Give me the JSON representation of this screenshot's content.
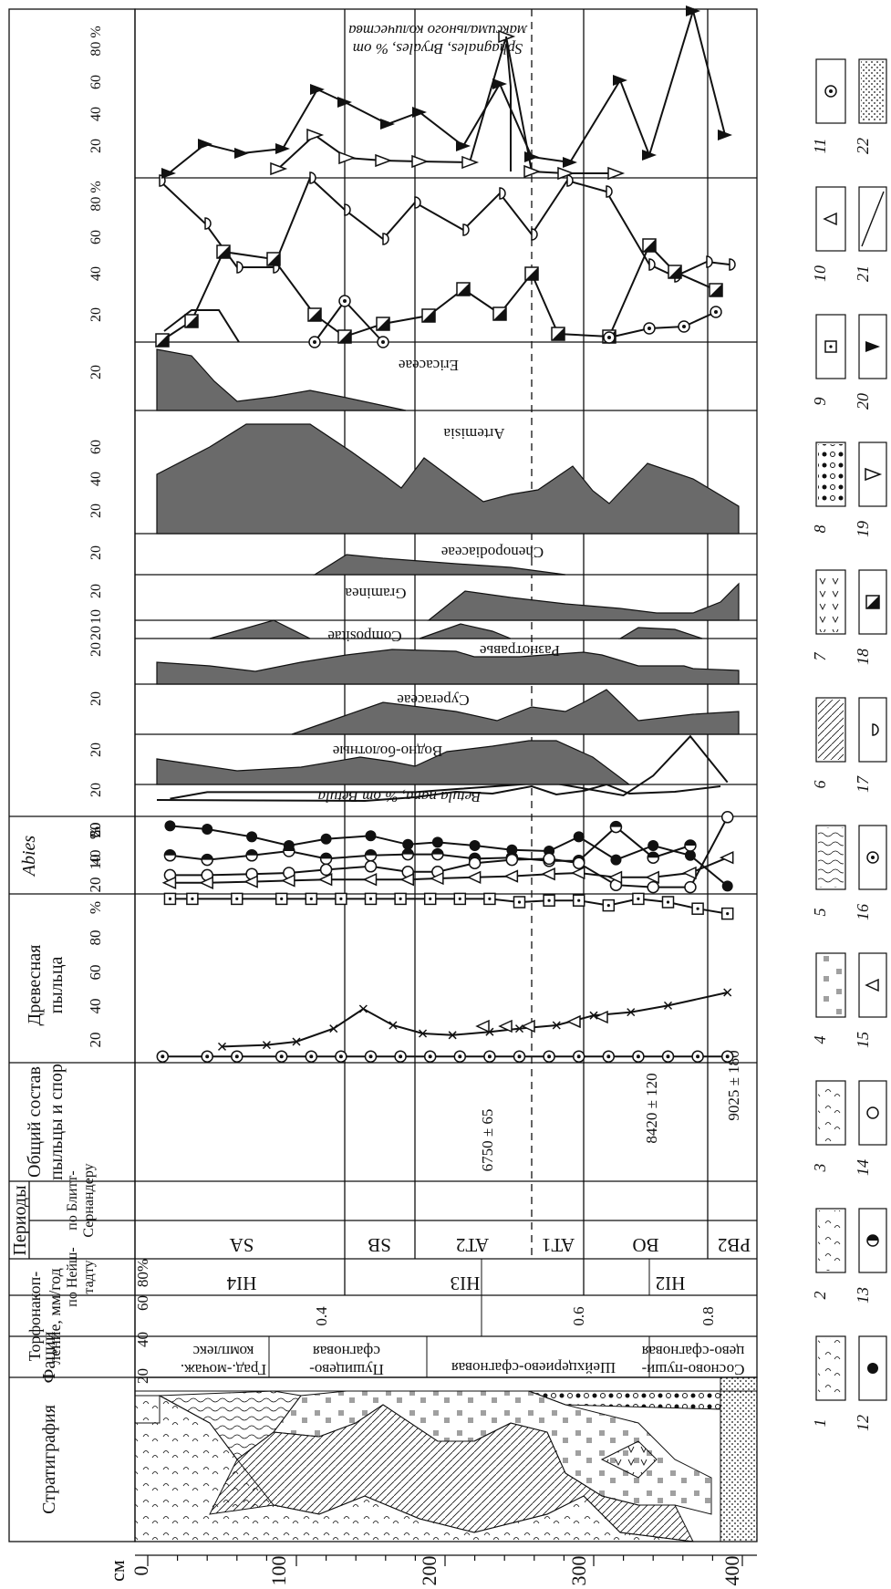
{
  "depth_axis": {
    "unit": "см",
    "ticks": [
      "0",
      "100",
      "200",
      "300",
      "400"
    ]
  },
  "headers": {
    "stratigraphy": "Стратиграфия",
    "facies": "Фации",
    "accumulation": "Торфонакоп-\nление, мм/год",
    "periods": "Периоды",
    "periods_neishtadt": "по Нейш-\nтадту",
    "periods_blytt": "по Блитт-\nСернандеру",
    "general": "Общий состав\nпыльцы и спор",
    "trees": "Древесная\nпыльца",
    "abies": "Abies"
  },
  "facies": [
    "Град.-мочаж.\nкомплекс",
    "Пушицево-\nсфагновая",
    "Шейхцериево-сфагновая",
    "Сосново-пуши-\nцево-сфагновая"
  ],
  "accumulation_values": [
    "0.4",
    "0.6",
    "0.8"
  ],
  "periods_neishtadt": [
    "HI4",
    "HI3",
    "HI2"
  ],
  "periods_blytt": [
    "SA",
    "SB",
    "AT2",
    "AT1",
    "BO",
    "PB2"
  ],
  "dates": [
    "6750 ± 65",
    "8420 ± 120",
    "9025 ± 180"
  ],
  "panel_labels": {
    "betula": "Betula nana, % от Betula",
    "bog": "Водно-болотные",
    "cyperaceae": "Cyperaceae",
    "herbs": "Разнотравье",
    "compositae": "Compositae",
    "gramineae": "Gramineа",
    "chenopodiaceae": "Chenopodiaceae",
    "artemisia": "Artemisia",
    "ericaceae": "Ericaceae",
    "spores_max": "Sphagnales, Bryales, % от\nмаксимального количества"
  },
  "scale_labels": {
    "general": [
      "20",
      "40",
      "60",
      "80",
      "%"
    ],
    "trees": [
      "20",
      "40",
      "60",
      "%"
    ],
    "abies": [
      "10",
      "20"
    ],
    "betula": [
      "20"
    ],
    "bog": [
      "20"
    ],
    "cyperaceae": [
      "20"
    ],
    "herbs": [
      "20"
    ],
    "compositae": [
      "20"
    ],
    "gramineae": [
      "10",
      "20"
    ],
    "chenopodiaceae": [
      "20"
    ],
    "artemisia": [
      "20",
      "40",
      "60"
    ],
    "ericaceae": [
      "20"
    ],
    "mosses": [
      "20",
      "40",
      "60",
      "80 %"
    ],
    "spores": [
      "20",
      "40",
      "60",
      "80 %"
    ]
  },
  "legend_numbers": [
    "1",
    "2",
    "3",
    "4",
    "5",
    "6",
    "7",
    "8",
    "9",
    "10",
    "11",
    "12",
    "13",
    "14",
    "15",
    "16",
    "17",
    "18",
    "19",
    "20",
    "21",
    "22"
  ],
  "chart_data": [
    {
      "type": "line",
      "name_ref": "general",
      "depth": [
        10,
        30,
        60,
        90,
        110,
        130,
        150,
        170,
        190,
        210,
        230,
        250,
        270,
        290,
        310,
        330,
        350,
        370,
        390
      ],
      "series": [
        {
          "depth": [
            10,
            40,
            60,
            90,
            110,
            130,
            150,
            170,
            190,
            210,
            230,
            250,
            270,
            290,
            310,
            330,
            350,
            370,
            390
          ],
          "values": [
            1,
            1,
            1,
            1,
            1,
            1,
            1,
            1,
            1,
            1,
            1,
            1,
            1,
            1,
            1,
            1,
            1,
            1,
            1
          ]
        },
        {
          "depth": [
            15,
            30,
            60,
            90,
            110,
            130,
            150,
            170,
            190,
            210,
            230,
            250,
            270,
            290,
            310,
            330,
            350,
            370,
            390
          ],
          "values": [
            97,
            97,
            97,
            97,
            97,
            97,
            97,
            97,
            97,
            97,
            97,
            95,
            96,
            96,
            93,
            97,
            95,
            91,
            88
          ]
        },
        {
          "depth": [
            50,
            80,
            100,
            125,
            145,
            165,
            185,
            205,
            230,
            250,
            275,
            300,
            325,
            350,
            390
          ],
          "values": [
            7,
            8,
            10,
            18,
            30,
            20,
            15,
            14,
            16,
            18,
            20,
            26,
            28,
            32,
            40
          ]
        }
      ]
    },
    {
      "type": "line",
      "name_ref": "trees",
      "series": [
        {
          "depth": [
            15,
            40,
            70,
            95,
            120,
            150,
            175,
            195,
            220,
            245,
            270,
            290,
            315,
            340,
            365,
            390
          ],
          "values": [
            58,
            55,
            48,
            40,
            46,
            49,
            41,
            43,
            40,
            36,
            35,
            48,
            27,
            40,
            31,
            3
          ]
        },
        {
          "depth": [
            15,
            40,
            70,
            95,
            120,
            150,
            175,
            195,
            220,
            245,
            270,
            290,
            315,
            340,
            365
          ],
          "values": [
            31,
            27,
            31,
            35,
            28,
            31,
            32,
            32,
            28,
            29,
            26,
            26,
            57,
            29,
            40
          ]
        },
        {
          "depth": [
            15,
            40,
            70,
            95,
            120,
            150,
            175,
            195,
            220,
            245,
            270,
            290,
            315,
            340,
            365,
            390
          ],
          "values": [
            13,
            13,
            14,
            15,
            18,
            21,
            16,
            16,
            24,
            27,
            28,
            24,
            4,
            2,
            2,
            66
          ]
        },
        {
          "depth": [
            15,
            40,
            70,
            95,
            120,
            150,
            175,
            195,
            220,
            245,
            270,
            290,
            315,
            340,
            365,
            390
          ],
          "values": [
            6,
            6,
            7,
            8,
            9,
            9,
            9,
            10,
            11,
            12,
            14,
            15,
            11,
            11,
            15,
            29
          ]
        }
      ]
    },
    {
      "type": "line",
      "name_ref": "abies",
      "depth": [
        15,
        40,
        80,
        120,
        150,
        180,
        210,
        240,
        270,
        295,
        320,
        340,
        365,
        390
      ],
      "values": [
        4,
        6,
        6,
        6,
        6,
        6,
        7,
        8,
        9,
        7,
        5,
        11,
        23,
        9
      ]
    }
  ]
}
